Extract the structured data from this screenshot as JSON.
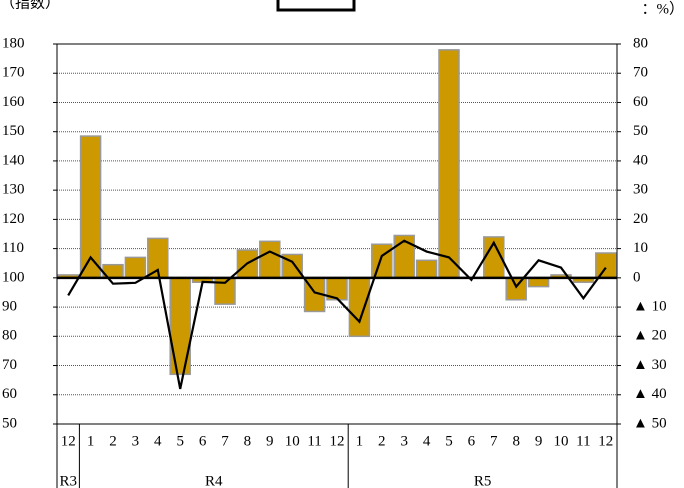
{
  "chart_data": {
    "type": "bar_line",
    "left_note": "（指数）",
    "right_note": "：%）",
    "categories": [
      "12",
      "1",
      "2",
      "3",
      "4",
      "5",
      "6",
      "7",
      "8",
      "9",
      "10",
      "11",
      "12",
      "1",
      "2",
      "3",
      "4",
      "5",
      "6",
      "7",
      "8",
      "9",
      "10",
      "11",
      "12"
    ],
    "groups": [
      {
        "label": "R3",
        "size": 1
      },
      {
        "label": "R4",
        "size": 12
      },
      {
        "label": "R5",
        "size": 12
      }
    ],
    "series": [
      {
        "type": "bar",
        "color": "#cc9900",
        "values": [
          101,
          148.5,
          104.5,
          107,
          113.5,
          67,
          98.5,
          91,
          109.5,
          112.5,
          108,
          88.5,
          92.5,
          80,
          111.5,
          114.5,
          106,
          178,
          100,
          114,
          92.5,
          97,
          101,
          98.5,
          108.5
        ]
      },
      {
        "type": "line",
        "axis": "y2",
        "color": "#000000",
        "values": [
          -6,
          7,
          -2,
          -1.7,
          2.7,
          -38,
          -1.4,
          -1.7,
          5,
          9,
          5.5,
          -5,
          -7,
          -15,
          7.5,
          12.7,
          9,
          7,
          -0.7,
          12,
          -3,
          6,
          3.5,
          -7,
          3.5
        ]
      }
    ],
    "bar_base": 100,
    "ylim": [
      50,
      180
    ],
    "yticks": [
      50,
      60,
      70,
      80,
      90,
      100,
      110,
      120,
      130,
      140,
      150,
      160,
      170,
      180
    ],
    "y2lim": [
      -50,
      80
    ],
    "y2ticks": [
      {
        "value": -50,
        "label": "▲ 50"
      },
      {
        "value": -40,
        "label": "▲ 40"
      },
      {
        "value": -30,
        "label": "▲ 30"
      },
      {
        "value": -20,
        "label": "▲ 20"
      },
      {
        "value": -10,
        "label": "▲ 10"
      },
      0,
      10,
      20,
      30,
      40,
      50,
      60,
      70,
      80
    ],
    "grid": true
  }
}
